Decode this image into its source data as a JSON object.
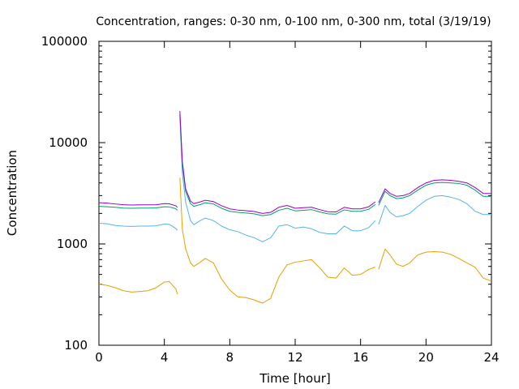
{
  "chart_data": {
    "type": "line",
    "title": "Concentration, ranges: 0-30 nm, 0-100 nm, 0-300 nm, total (3/19/19)",
    "xlabel": "Time [hour]",
    "ylabel": "Concentration",
    "xlim": [
      0,
      24
    ],
    "ylim": [
      100,
      100000
    ],
    "yscale": "log",
    "grid": false,
    "x_ticks": [
      0,
      4,
      8,
      12,
      16,
      20,
      24
    ],
    "x_tick_labels": [
      "0",
      "4",
      "8",
      "12",
      "16",
      "20",
      "24"
    ],
    "y_ticks": [
      100,
      1000,
      10000,
      100000
    ],
    "y_tick_labels": [
      "100",
      "1000",
      "10000",
      "100000"
    ],
    "series": [
      {
        "color": "#e69f00",
        "x": [
          0,
          0.5,
          1,
          1.5,
          2,
          2.5,
          3,
          3.5,
          4,
          4.3,
          4.7,
          4.8,
          null,
          4.95,
          5.1,
          5.3,
          5.6,
          5.8,
          6.2,
          6.5,
          7,
          7.5,
          8,
          8.5,
          9,
          9.5,
          10,
          10.5,
          11,
          11.5,
          12,
          12.5,
          13,
          13.5,
          14,
          14.5,
          15,
          15.5,
          16,
          16.5,
          16.9,
          null,
          17.1,
          17.5,
          17.8,
          18.2,
          18.6,
          19,
          19.5,
          20,
          20.5,
          21,
          21.5,
          22,
          22.5,
          23,
          23.5,
          24
        ],
        "y": [
          400,
          390,
          370,
          345,
          335,
          340,
          345,
          370,
          420,
          425,
          360,
          320,
          null,
          4500,
          1400,
          900,
          650,
          600,
          660,
          720,
          650,
          450,
          350,
          300,
          295,
          280,
          260,
          290,
          470,
          620,
          660,
          680,
          700,
          580,
          470,
          460,
          580,
          490,
          500,
          560,
          590,
          null,
          560,
          890,
          780,
          630,
          600,
          650,
          780,
          830,
          840,
          830,
          790,
          720,
          650,
          590,
          460,
          430
        ]
      },
      {
        "color": "#56b4e9",
        "x": [
          0,
          0.5,
          1,
          1.5,
          2,
          2.5,
          3,
          3.5,
          4,
          4.3,
          4.7,
          4.8,
          null,
          4.95,
          5.1,
          5.3,
          5.6,
          5.8,
          6.2,
          6.5,
          7,
          7.5,
          8,
          8.5,
          9,
          9.5,
          10,
          10.5,
          11,
          11.5,
          12,
          12.5,
          13,
          13.5,
          14,
          14.5,
          15,
          15.5,
          16,
          16.5,
          16.9,
          null,
          17.1,
          17.5,
          17.8,
          18.2,
          18.6,
          19,
          19.5,
          20,
          20.5,
          21,
          21.5,
          22,
          22.5,
          23,
          23.5,
          24
        ],
        "y": [
          1600,
          1580,
          1520,
          1500,
          1490,
          1500,
          1500,
          1510,
          1570,
          1560,
          1420,
          1360,
          null,
          18000,
          5000,
          2600,
          1700,
          1550,
          1700,
          1800,
          1700,
          1500,
          1380,
          1320,
          1220,
          1150,
          1050,
          1150,
          1500,
          1550,
          1430,
          1470,
          1410,
          1300,
          1260,
          1260,
          1500,
          1350,
          1350,
          1450,
          1700,
          null,
          1550,
          2400,
          2050,
          1850,
          1900,
          2000,
          2350,
          2700,
          2950,
          3000,
          2900,
          2750,
          2500,
          2100,
          1950,
          1950
        ]
      },
      {
        "color": "#009e73",
        "x": [
          0,
          0.5,
          1,
          1.5,
          2,
          2.5,
          3,
          3.5,
          4,
          4.3,
          4.7,
          4.8,
          null,
          4.95,
          5.1,
          5.3,
          5.6,
          5.8,
          6.2,
          6.5,
          7,
          7.5,
          8,
          8.5,
          9,
          9.5,
          10,
          10.5,
          11,
          11.5,
          12,
          12.5,
          13,
          13.5,
          14,
          14.5,
          15,
          15.5,
          16,
          16.5,
          16.9,
          null,
          17.1,
          17.5,
          17.8,
          18.2,
          18.6,
          19,
          19.5,
          20,
          20.5,
          21,
          21.5,
          22,
          22.5,
          23,
          23.5,
          24
        ],
        "y": [
          2350,
          2330,
          2300,
          2260,
          2250,
          2260,
          2260,
          2270,
          2330,
          2320,
          2230,
          2150,
          null,
          19000,
          6000,
          3300,
          2500,
          2350,
          2450,
          2550,
          2480,
          2250,
          2100,
          2050,
          2020,
          1980,
          1900,
          1950,
          2150,
          2250,
          2120,
          2150,
          2180,
          2070,
          1980,
          1970,
          2170,
          2100,
          2100,
          2200,
          2450,
          null,
          2400,
          3300,
          3000,
          2800,
          2850,
          3000,
          3400,
          3800,
          4000,
          4050,
          4000,
          3950,
          3800,
          3400,
          2950,
          2950
        ]
      },
      {
        "color": "#9400d3",
        "x": [
          0,
          0.5,
          1,
          1.5,
          2,
          2.5,
          3,
          3.5,
          4,
          4.3,
          4.7,
          4.8,
          null,
          4.95,
          5.1,
          5.3,
          5.6,
          5.8,
          6.2,
          6.5,
          7,
          7.5,
          8,
          8.5,
          9,
          9.5,
          10,
          10.5,
          11,
          11.5,
          12,
          12.5,
          13,
          13.5,
          14,
          14.5,
          15,
          15.5,
          16,
          16.5,
          16.9,
          null,
          17.1,
          17.5,
          17.8,
          18.2,
          18.6,
          19,
          19.5,
          20,
          20.5,
          21,
          21.5,
          22,
          22.5,
          23,
          23.5,
          24
        ],
        "y": [
          2550,
          2530,
          2480,
          2440,
          2420,
          2430,
          2430,
          2440,
          2500,
          2490,
          2380,
          2300,
          null,
          20500,
          6500,
          3500,
          2650,
          2500,
          2600,
          2700,
          2620,
          2380,
          2220,
          2160,
          2130,
          2090,
          2000,
          2050,
          2300,
          2400,
          2250,
          2280,
          2300,
          2180,
          2080,
          2070,
          2300,
          2220,
          2220,
          2330,
          2600,
          null,
          2550,
          3500,
          3150,
          2950,
          3000,
          3150,
          3600,
          4000,
          4250,
          4300,
          4250,
          4150,
          4000,
          3600,
          3150,
          3150
        ]
      }
    ]
  }
}
